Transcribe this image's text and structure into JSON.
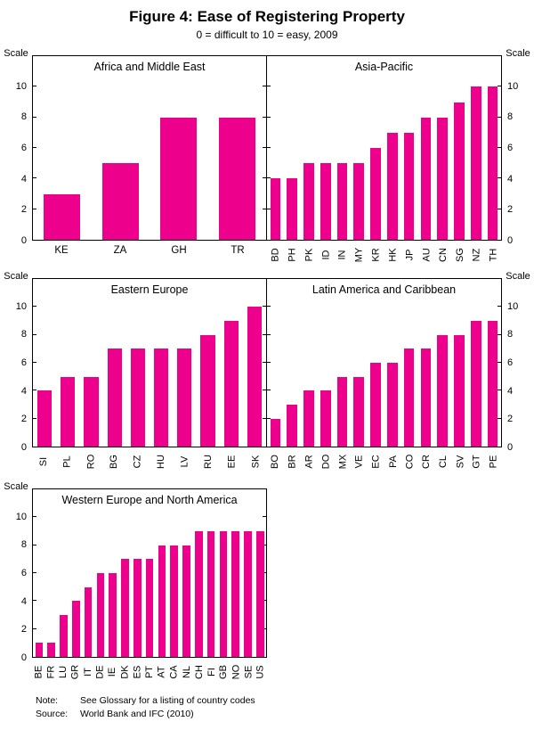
{
  "figure": {
    "title": "Figure 4: Ease of Registering Property",
    "subtitle": "0 = difficult to 10 = easy, 2009",
    "scale_label": "Scale",
    "bar_color": "#EC008C",
    "note": {
      "label": "Note:",
      "text": "See Glossary for a listing of country codes"
    },
    "source": {
      "label": "Source:",
      "text": "World Bank and IFC (2010)"
    }
  },
  "chart_data": [
    {
      "type": "bar",
      "title": "Africa and Middle East",
      "categories": [
        "KE",
        "ZA",
        "GH",
        "TR"
      ],
      "values": [
        3,
        5,
        8,
        8
      ],
      "ylim": [
        0,
        12
      ],
      "yticks": [
        0,
        2,
        4,
        6,
        8,
        10
      ],
      "axis_side": "left",
      "xlabel_rotation": "horizontal"
    },
    {
      "type": "bar",
      "title": "Asia-Pacific",
      "categories": [
        "BD",
        "PH",
        "PK",
        "ID",
        "IN",
        "MY",
        "KR",
        "HK",
        "JP",
        "AU",
        "CN",
        "SG",
        "NZ",
        "TH"
      ],
      "values": [
        4,
        4,
        5,
        5,
        5,
        5,
        6,
        7,
        7,
        8,
        8,
        9,
        10,
        10
      ],
      "ylim": [
        0,
        12
      ],
      "yticks": [
        0,
        2,
        4,
        6,
        8,
        10
      ],
      "axis_side": "right",
      "xlabel_rotation": "vertical"
    },
    {
      "type": "bar",
      "title": "Eastern Europe",
      "categories": [
        "SI",
        "PL",
        "RO",
        "BG",
        "CZ",
        "HU",
        "LV",
        "RU",
        "EE",
        "SK"
      ],
      "values": [
        4,
        5,
        5,
        7,
        7,
        7,
        7,
        8,
        9,
        10
      ],
      "ylim": [
        0,
        12
      ],
      "yticks": [
        0,
        2,
        4,
        6,
        8,
        10
      ],
      "axis_side": "left",
      "xlabel_rotation": "vertical"
    },
    {
      "type": "bar",
      "title": "Latin America and Caribbean",
      "categories": [
        "BO",
        "BR",
        "AR",
        "DO",
        "MX",
        "VE",
        "EC",
        "PA",
        "CO",
        "CR",
        "CL",
        "SV",
        "GT",
        "PE"
      ],
      "values": [
        2,
        3,
        4,
        4,
        5,
        5,
        6,
        6,
        7,
        7,
        8,
        8,
        9,
        9
      ],
      "ylim": [
        0,
        12
      ],
      "yticks": [
        0,
        2,
        4,
        6,
        8,
        10
      ],
      "axis_side": "right",
      "xlabel_rotation": "vertical"
    },
    {
      "type": "bar",
      "title": "Western Europe and North America",
      "categories": [
        "BE",
        "FR",
        "LU",
        "GR",
        "IT",
        "DE",
        "IE",
        "DK",
        "ES",
        "PT",
        "AT",
        "CA",
        "NL",
        "CH",
        "FI",
        "GB",
        "NO",
        "SE",
        "US"
      ],
      "values": [
        1,
        1,
        3,
        4,
        5,
        6,
        6,
        7,
        7,
        7,
        8,
        8,
        8,
        9,
        9,
        9,
        9,
        9,
        9
      ],
      "ylim": [
        0,
        12
      ],
      "yticks": [
        0,
        2,
        4,
        6,
        8,
        10
      ],
      "axis_side": "left",
      "xlabel_rotation": "vertical"
    }
  ]
}
